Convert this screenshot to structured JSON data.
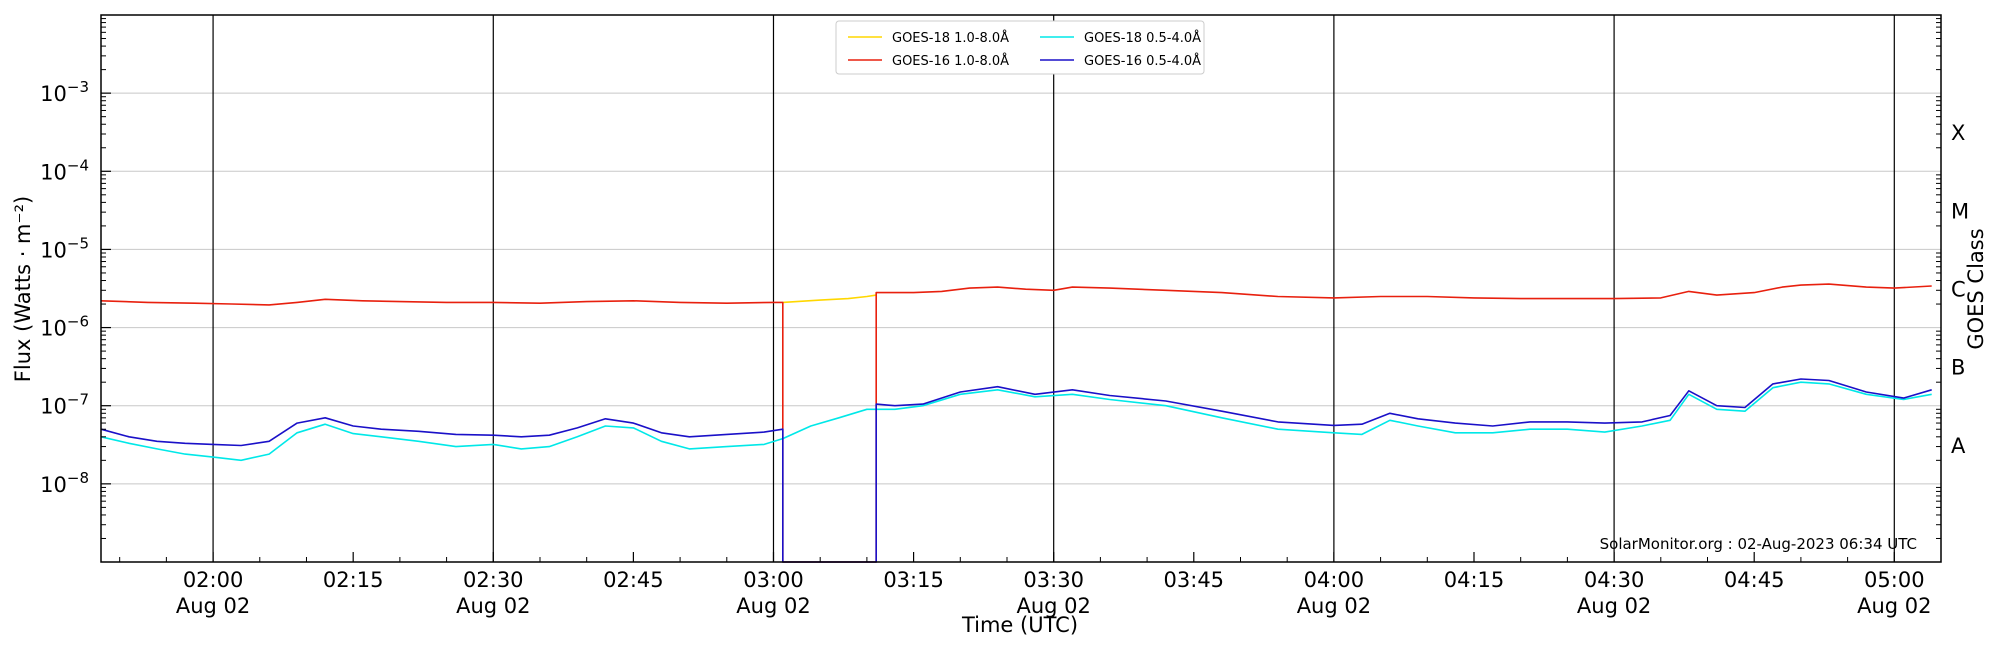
{
  "chart_data": {
    "type": "line",
    "title": "",
    "xlabel": "Time (UTC)",
    "ylabel": "Flux (Watts · m⁻²)",
    "y2label": "GOES Class",
    "yscale": "log",
    "ylim": [
      1e-09,
      0.01
    ],
    "xlim": [
      "01:48",
      "05:05"
    ],
    "grid": "horizontal at decades, vertical at half-hours",
    "legend_position": "top-center",
    "x_ticks": [
      {
        "t": "02:00",
        "label": "02:00",
        "sublabel": "Aug 02"
      },
      {
        "t": "02:15",
        "label": "02:15",
        "sublabel": ""
      },
      {
        "t": "02:30",
        "label": "02:30",
        "sublabel": "Aug 02"
      },
      {
        "t": "02:45",
        "label": "02:45",
        "sublabel": ""
      },
      {
        "t": "03:00",
        "label": "03:00",
        "sublabel": "Aug 02"
      },
      {
        "t": "03:15",
        "label": "03:15",
        "sublabel": ""
      },
      {
        "t": "03:30",
        "label": "03:30",
        "sublabel": "Aug 02"
      },
      {
        "t": "03:45",
        "label": "03:45",
        "sublabel": ""
      },
      {
        "t": "04:00",
        "label": "04:00",
        "sublabel": "Aug 02"
      },
      {
        "t": "04:15",
        "label": "04:15",
        "sublabel": ""
      },
      {
        "t": "04:30",
        "label": "04:30",
        "sublabel": "Aug 02"
      },
      {
        "t": "04:45",
        "label": "04:45",
        "sublabel": ""
      },
      {
        "t": "05:00",
        "label": "05:00",
        "sublabel": "Aug 02"
      }
    ],
    "y_ticks": [
      {
        "v": 1e-08,
        "label": "10",
        "exp": "−8"
      },
      {
        "v": 1e-07,
        "label": "10",
        "exp": "−7"
      },
      {
        "v": 1e-06,
        "label": "10",
        "exp": "−6"
      },
      {
        "v": 1e-05,
        "label": "10",
        "exp": "−5"
      },
      {
        "v": 0.0001,
        "label": "10",
        "exp": "−4"
      },
      {
        "v": 0.001,
        "label": "10",
        "exp": "−3"
      }
    ],
    "goes_classes": [
      {
        "label": "X",
        "v": 0.000316
      },
      {
        "label": "M",
        "v": 3.16e-05
      },
      {
        "label": "C",
        "v": 3.16e-06
      },
      {
        "label": "B",
        "v": 3.16e-07
      },
      {
        "label": "A",
        "v": 3.16e-08
      }
    ],
    "series": [
      {
        "name": "GOES-18 1.0-8.0Å",
        "color": "#ffd700",
        "x": [
          "03:01",
          "03:05",
          "03:08",
          "03:10",
          "03:11"
        ],
        "y": [
          2.1e-06,
          2.25e-06,
          2.35e-06,
          2.5e-06,
          2.6e-06
        ]
      },
      {
        "name": "GOES-16 1.0-8.0Å",
        "color": "#e8200e",
        "x": [
          "01:48",
          "01:53",
          "01:58",
          "02:02",
          "02:06",
          "02:09",
          "02:12",
          "02:16",
          "02:20",
          "02:25",
          "02:30",
          "02:35",
          "02:40",
          "02:45",
          "02:50",
          "02:55",
          "03:00",
          "03:01",
          "03:01",
          "03:11",
          "03:11",
          "03:15",
          "03:18",
          "03:21",
          "03:24",
          "03:27",
          "03:30",
          "03:32",
          "03:36",
          "03:42",
          "03:48",
          "03:54",
          "04:00",
          "04:05",
          "04:10",
          "04:15",
          "04:20",
          "04:25",
          "04:30",
          "04:35",
          "04:38",
          "04:41",
          "04:45",
          "04:48",
          "04:50",
          "04:53",
          "04:57",
          "05:00",
          "05:04"
        ],
        "y": [
          2.2e-06,
          2.1e-06,
          2.05e-06,
          2e-06,
          1.95e-06,
          2.1e-06,
          2.3e-06,
          2.2e-06,
          2.15e-06,
          2.1e-06,
          2.1e-06,
          2.05e-06,
          2.15e-06,
          2.2e-06,
          2.1e-06,
          2.05e-06,
          2.1e-06,
          2.1e-06,
          1e-09,
          1e-09,
          2.8e-06,
          2.8e-06,
          2.9e-06,
          3.2e-06,
          3.3e-06,
          3.1e-06,
          3e-06,
          3.3e-06,
          3.2e-06,
          3e-06,
          2.8e-06,
          2.5e-06,
          2.4e-06,
          2.5e-06,
          2.5e-06,
          2.4e-06,
          2.35e-06,
          2.35e-06,
          2.35e-06,
          2.4e-06,
          2.9e-06,
          2.6e-06,
          2.8e-06,
          3.3e-06,
          3.5e-06,
          3.6e-06,
          3.3e-06,
          3.2e-06,
          3.4e-06
        ]
      },
      {
        "name": "GOES-18 0.5-4.0Å",
        "color": "#00e8e8",
        "x": [
          "01:48",
          "01:51",
          "01:54",
          "01:57",
          "02:00",
          "02:03",
          "02:06",
          "02:09",
          "02:12",
          "02:15",
          "02:18",
          "02:22",
          "02:26",
          "02:30",
          "02:33",
          "02:36",
          "02:39",
          "02:42",
          "02:45",
          "02:48",
          "02:51",
          "02:55",
          "02:59",
          "03:01",
          "03:04",
          "03:07",
          "03:10",
          "03:13",
          "03:16",
          "03:20",
          "03:24",
          "03:28",
          "03:32",
          "03:36",
          "03:42",
          "03:48",
          "03:54",
          "04:00",
          "04:03",
          "04:06",
          "04:09",
          "04:13",
          "04:17",
          "04:21",
          "04:25",
          "04:29",
          "04:33",
          "04:36",
          "04:38",
          "04:41",
          "04:44",
          "04:47",
          "04:50",
          "04:53",
          "04:57",
          "05:01",
          "05:04"
        ],
        "y": [
          4e-08,
          3.3e-08,
          2.8e-08,
          2.4e-08,
          2.2e-08,
          2e-08,
          2.4e-08,
          4.5e-08,
          5.8e-08,
          4.4e-08,
          4e-08,
          3.5e-08,
          3e-08,
          3.2e-08,
          2.8e-08,
          3e-08,
          4e-08,
          5.5e-08,
          5.2e-08,
          3.5e-08,
          2.8e-08,
          3e-08,
          3.2e-08,
          3.8e-08,
          5.5e-08,
          7e-08,
          9e-08,
          9e-08,
          1e-07,
          1.4e-07,
          1.6e-07,
          1.3e-07,
          1.4e-07,
          1.2e-07,
          1e-07,
          7e-08,
          5e-08,
          4.5e-08,
          4.3e-08,
          6.5e-08,
          5.5e-08,
          4.5e-08,
          4.5e-08,
          5e-08,
          5e-08,
          4.6e-08,
          5.5e-08,
          6.5e-08,
          1.4e-07,
          9e-08,
          8.5e-08,
          1.7e-07,
          2e-07,
          1.9e-07,
          1.4e-07,
          1.2e-07,
          1.4e-07
        ]
      },
      {
        "name": "GOES-16 0.5-4.0Å",
        "color": "#1a10c8",
        "x": [
          "01:48",
          "01:51",
          "01:54",
          "01:57",
          "02:00",
          "02:03",
          "02:06",
          "02:09",
          "02:12",
          "02:15",
          "02:18",
          "02:22",
          "02:26",
          "02:30",
          "02:33",
          "02:36",
          "02:39",
          "02:42",
          "02:45",
          "02:48",
          "02:51",
          "02:55",
          "02:59",
          "03:01",
          "03:01",
          "03:11",
          "03:11",
          "03:13",
          "03:16",
          "03:20",
          "03:24",
          "03:28",
          "03:32",
          "03:36",
          "03:42",
          "03:48",
          "03:54",
          "04:00",
          "04:03",
          "04:06",
          "04:09",
          "04:13",
          "04:17",
          "04:21",
          "04:25",
          "04:29",
          "04:33",
          "04:36",
          "04:38",
          "04:41",
          "04:44",
          "04:47",
          "04:50",
          "04:53",
          "04:57",
          "05:01",
          "05:04"
        ],
        "y": [
          5e-08,
          4e-08,
          3.5e-08,
          3.3e-08,
          3.2e-08,
          3.1e-08,
          3.5e-08,
          6e-08,
          7e-08,
          5.5e-08,
          5e-08,
          4.7e-08,
          4.3e-08,
          4.2e-08,
          4e-08,
          4.2e-08,
          5.2e-08,
          6.8e-08,
          6e-08,
          4.5e-08,
          4e-08,
          4.3e-08,
          4.6e-08,
          5e-08,
          1e-09,
          1e-09,
          1.05e-07,
          1e-07,
          1.05e-07,
          1.5e-07,
          1.75e-07,
          1.4e-07,
          1.6e-07,
          1.35e-07,
          1.15e-07,
          8.5e-08,
          6.2e-08,
          5.6e-08,
          5.8e-08,
          8e-08,
          6.8e-08,
          6e-08,
          5.5e-08,
          6.2e-08,
          6.2e-08,
          6e-08,
          6.2e-08,
          7.5e-08,
          1.55e-07,
          1e-07,
          9.5e-08,
          1.9e-07,
          2.2e-07,
          2.1e-07,
          1.5e-07,
          1.25e-07,
          1.6e-07
        ]
      }
    ],
    "annotation": "SolarMonitor.org : 02-Aug-2023 06:34 UTC"
  }
}
